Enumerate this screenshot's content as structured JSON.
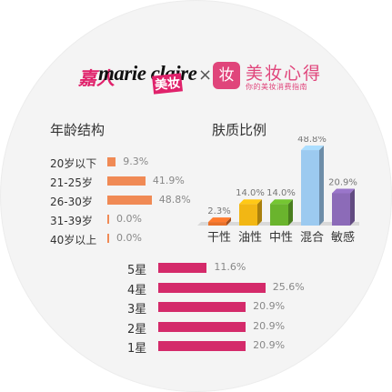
{
  "brand": {
    "partner_cn": "嘉人",
    "partner_en": "marie claire",
    "partner_sub": "美妆",
    "times": "×",
    "app_icon": "妆",
    "app_name": "美妆心得",
    "app_slogan": "你的美妆消费指南"
  },
  "colors": {
    "pink": "#e0226b",
    "orange": "#f08a55",
    "magenta": "#d42a6a"
  },
  "chart_data": [
    {
      "type": "bar",
      "orientation": "horizontal",
      "title": "年龄结构",
      "categories": [
        "20岁以下",
        "21-25岁",
        "26-30岁",
        "31-39岁",
        "40岁以上"
      ],
      "values": [
        9.3,
        41.9,
        48.8,
        0.0,
        0.0
      ],
      "labels": [
        "9.3%",
        "41.9%",
        "48.8%",
        "0.0%",
        "0.0%"
      ],
      "color": "#f08a55"
    },
    {
      "type": "bar",
      "orientation": "vertical",
      "title": "肤质比例",
      "categories": [
        "干性",
        "油性",
        "中性",
        "混合",
        "敏感"
      ],
      "values": [
        2.3,
        14.0,
        14.0,
        48.8,
        20.9
      ],
      "labels": [
        "2.3%",
        "14.0%",
        "14.0%",
        "48.8%",
        "20.9%"
      ],
      "colors": [
        "#e8702a",
        "#f2b714",
        "#6ab42d",
        "#9ccaf0",
        "#8c6bb8"
      ]
    },
    {
      "type": "bar",
      "orientation": "horizontal",
      "categories": [
        "5星",
        "4星",
        "3星",
        "2星",
        "1星"
      ],
      "values": [
        11.6,
        25.6,
        20.9,
        20.9,
        20.9
      ],
      "labels": [
        "11.6%",
        "25.6%",
        "20.9%",
        "20.9%",
        "20.9%"
      ],
      "color": "#d42a6a"
    }
  ]
}
